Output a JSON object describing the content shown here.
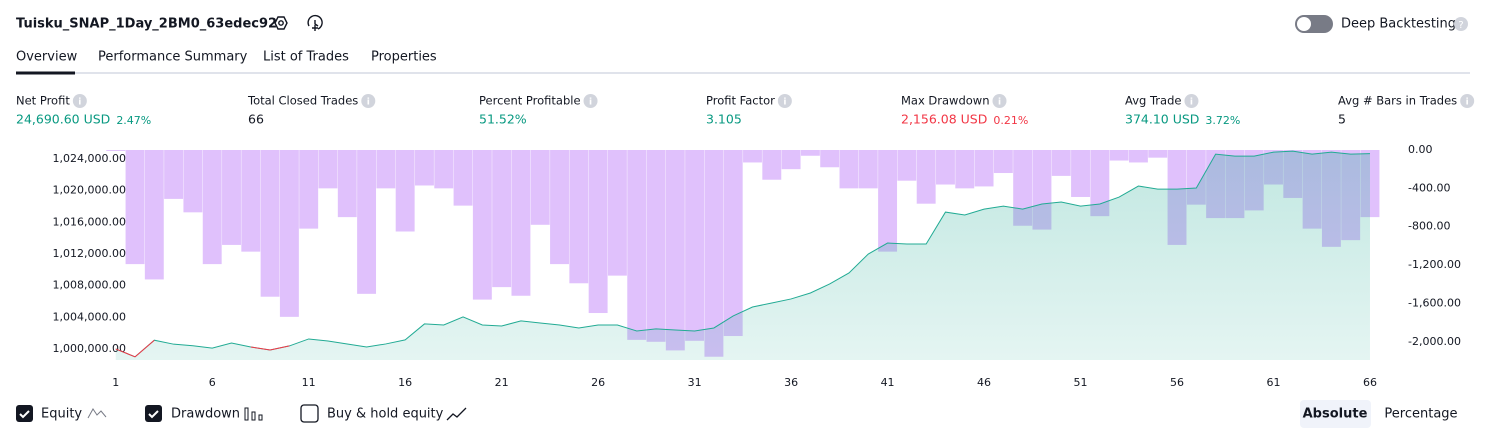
{
  "header": {
    "title": "Tuisku_SNAP_1Day_2BM0_63edec92",
    "toggle_label": "Deep Backtesting"
  },
  "tabs": [
    "Overview",
    "Performance Summary",
    "List of Trades",
    "Properties"
  ],
  "metrics": [
    {
      "label": "Net Profit",
      "value": "24,690.60 USD",
      "percent": "2.47%",
      "tone": "positive"
    },
    {
      "label": "Total Closed Trades",
      "value": "66",
      "tone": "neutral"
    },
    {
      "label": "Percent Profitable",
      "value": "51.52%",
      "tone": "positive"
    },
    {
      "label": "Profit Factor",
      "value": "3.105",
      "tone": "positive"
    },
    {
      "label": "Max Drawdown",
      "value": "2,156.08 USD",
      "percent": "0.21%",
      "tone": "negative"
    },
    {
      "label": "Avg Trade",
      "value": "374.10 USD",
      "percent": "3.72%",
      "tone": "positive"
    },
    {
      "label": "Avg # Bars in Trades",
      "value": "5",
      "tone": "neutral"
    }
  ],
  "chart_data": {
    "type": "combo",
    "x": [
      1,
      2,
      3,
      4,
      5,
      6,
      7,
      8,
      9,
      10,
      11,
      12,
      13,
      14,
      15,
      16,
      17,
      18,
      19,
      20,
      21,
      22,
      23,
      24,
      25,
      26,
      27,
      28,
      29,
      30,
      31,
      32,
      33,
      34,
      35,
      36,
      37,
      38,
      39,
      40,
      41,
      42,
      43,
      44,
      45,
      46,
      47,
      48,
      49,
      50,
      51,
      52,
      53,
      54,
      55,
      56,
      57,
      58,
      59,
      60,
      61,
      62,
      63,
      64,
      65,
      66
    ],
    "series": [
      {
        "name": "Equity",
        "type": "line",
        "color": "#22ab94",
        "loss_color": "#f23645",
        "values": [
          1000000,
          999000,
          1001100,
          1000600,
          1000400,
          1000100,
          1000750,
          1000250,
          999870,
          1000380,
          1001260,
          1001000,
          1000630,
          1000250,
          1000630,
          1001140,
          1003160,
          1003030,
          1004040,
          1003030,
          1002900,
          1003540,
          1003280,
          1003030,
          1002650,
          1003030,
          1003030,
          1002270,
          1002530,
          1002400,
          1002270,
          1002650,
          1004170,
          1005300,
          1005810,
          1006320,
          1007070,
          1008210,
          1009600,
          1012000,
          1013390,
          1013260,
          1013260,
          1017300,
          1016930,
          1017680,
          1018060,
          1017680,
          1018320,
          1018570,
          1018060,
          1018320,
          1019200,
          1020590,
          1020210,
          1020210,
          1020340,
          1024630,
          1024380,
          1024380,
          1024880,
          1025010,
          1024630,
          1024880,
          1024630,
          1024690
        ]
      },
      {
        "name": "Drawdown",
        "type": "bar",
        "axis": "y2",
        "color": "#cf9ffb",
        "values": [
          -10,
          -1190,
          -1350,
          -510,
          -650,
          -1190,
          -990,
          -1060,
          -1530,
          -1740,
          -820,
          -400,
          -700,
          -1500,
          -400,
          -850,
          -370,
          -400,
          -580,
          -1560,
          -1430,
          -1520,
          -780,
          -1190,
          -1390,
          -1700,
          -1310,
          -1980,
          -2000,
          -2090,
          -1990,
          -2156,
          -1940,
          -130,
          -310,
          -200,
          -60,
          -180,
          -400,
          -400,
          -1060,
          -320,
          -560,
          -360,
          -400,
          -380,
          -240,
          -790,
          -830,
          -270,
          -490,
          -690,
          -110,
          -130,
          -80,
          -990,
          -570,
          -710,
          -710,
          -630,
          -360,
          -500,
          -820,
          -1010,
          -940,
          -700
        ]
      }
    ],
    "xlim": [
      0.6,
      67.4
    ],
    "xticks": [
      1,
      6,
      11,
      16,
      21,
      26,
      31,
      36,
      41,
      46,
      51,
      56,
      61,
      66
    ],
    "ylim": [
      998600,
      1025150
    ],
    "yticks": [
      {
        "value": 1000000,
        "label": "1,000,000.00"
      },
      {
        "value": 1004000,
        "label": "1,004,000.00"
      },
      {
        "value": 1008000,
        "label": "1,008,000.00"
      },
      {
        "value": 1012000,
        "label": "1,012,000.00"
      },
      {
        "value": 1016000,
        "label": "1,016,000.00"
      },
      {
        "value": 1020000,
        "label": "1,020,000.00"
      },
      {
        "value": 1024000,
        "label": "1,024,000.00"
      }
    ],
    "y2lim": [
      -2190,
      0
    ],
    "y2ticks": [
      {
        "value": 0,
        "label": "0.00"
      },
      {
        "value": -400,
        "label": "-400.00"
      },
      {
        "value": -800,
        "label": "-800.00"
      },
      {
        "value": -1200,
        "label": "-1,200.00"
      },
      {
        "value": -1600,
        "label": "-1,600.00"
      },
      {
        "value": -2000,
        "label": "-2,000.00"
      }
    ],
    "grid": false
  },
  "controls": {
    "buy_hold": "Buy & hold equity",
    "modes": [
      "Absolute",
      "Percentage"
    ]
  }
}
